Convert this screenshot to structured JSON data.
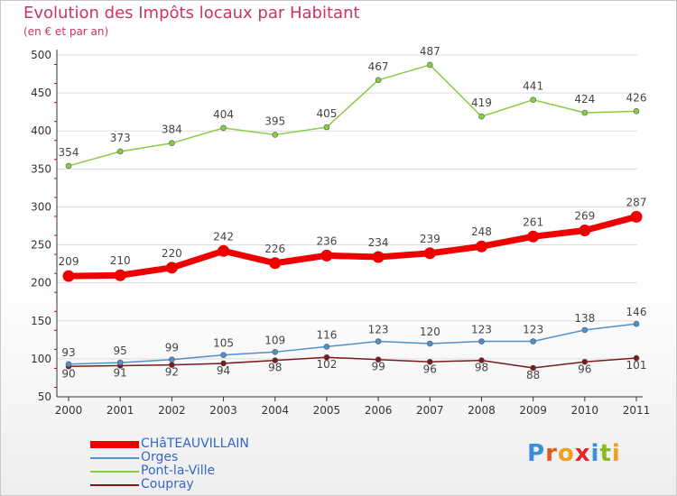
{
  "title": "Evolution des Impôts locaux par Habitant",
  "subtitle": "(en € et par an)",
  "logo_text": "Proxiti",
  "colors": {
    "title": "#cc3366",
    "legend_text": "#3366cc",
    "grid_accent": "#cc0000"
  },
  "chart_data": {
    "type": "line",
    "x": [
      "2000",
      "2001",
      "2002",
      "2003",
      "2004",
      "2005",
      "2006",
      "2007",
      "2008",
      "2009",
      "2010",
      "2011"
    ],
    "ylim": [
      50,
      500
    ],
    "yticks": [
      50,
      100,
      150,
      200,
      250,
      300,
      350,
      400,
      450,
      500
    ],
    "legend_position": "bottom-left",
    "series": [
      {
        "name": "CHâTEAUVILLAIN",
        "color": "#ee0000",
        "weight": "heavy",
        "values": [
          209,
          210,
          220,
          242,
          226,
          236,
          234,
          239,
          248,
          261,
          269,
          287
        ],
        "labels": [
          "209",
          "210",
          "220",
          "242",
          "226",
          "236",
          "234",
          "239",
          "248",
          "261",
          "269",
          "287"
        ]
      },
      {
        "name": "Orges",
        "color": "#4f8fcf",
        "weight": "thin",
        "values": [
          93,
          95,
          99,
          105,
          109,
          116,
          123,
          120,
          123,
          123,
          138,
          146
        ],
        "labels": [
          "93",
          "95",
          "99",
          "105",
          "109",
          "116",
          "123",
          "120",
          "123",
          "123",
          "138",
          "146"
        ]
      },
      {
        "name": "Pont-la-Ville",
        "color": "#88cc44",
        "weight": "thin",
        "values": [
          354,
          373,
          384,
          404,
          395,
          405,
          467,
          487,
          419,
          441,
          424,
          426
        ],
        "labels": [
          "354",
          "373",
          "384",
          "404",
          "395",
          "405",
          "467",
          "487",
          "419",
          "441",
          "424",
          "426"
        ]
      },
      {
        "name": "Coupray",
        "color": "#7a1a1a",
        "weight": "thin",
        "values": [
          90,
          91,
          92,
          94,
          98,
          102,
          99,
          96,
          98,
          88,
          96,
          101
        ],
        "labels": [
          "90",
          "91",
          "92",
          "94",
          "98",
          "102",
          "99",
          "96",
          "98",
          "88",
          "96",
          "101"
        ]
      }
    ]
  }
}
